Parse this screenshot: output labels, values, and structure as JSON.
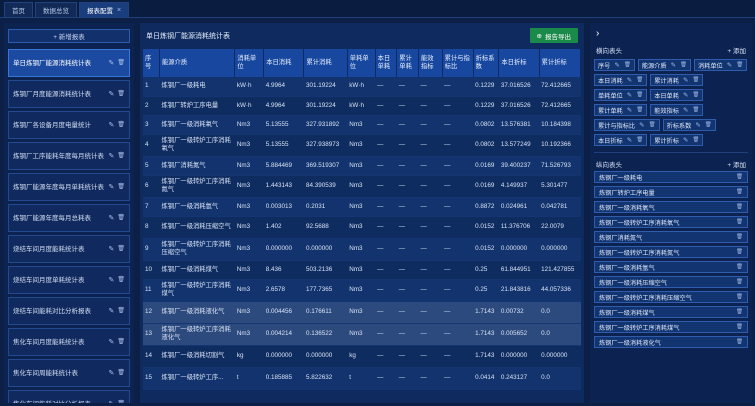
{
  "tabs": [
    {
      "label": "首页",
      "active": false
    },
    {
      "label": "数据总览",
      "active": false
    },
    {
      "label": "报表配置",
      "active": true,
      "closable": true
    }
  ],
  "left": {
    "new_button": "+ 新增报表",
    "items": [
      {
        "label": "单日炼钢厂能源消耗统计表",
        "active": true
      },
      {
        "label": "炼钢厂月度能源消耗统计表"
      },
      {
        "label": "炼钢厂各设备月度电量统计"
      },
      {
        "label": "炼钢厂工序能耗年度每月统计表"
      },
      {
        "label": "炼钢厂能源年度每月单耗统计表"
      },
      {
        "label": "炼钢厂能源年度每月总耗表"
      },
      {
        "label": "烧结车间月度能耗统计表"
      },
      {
        "label": "烧结车间月度单耗统计表"
      },
      {
        "label": "烧结车间能耗对比分析报表"
      },
      {
        "label": "焦化车间月度能耗统计表"
      },
      {
        "label": "焦化车间周能耗统计表"
      },
      {
        "label": "焦化车间能耗对比分析报表"
      }
    ]
  },
  "center": {
    "title": "单日炼钢厂能源消耗统计表",
    "export_label": "报告导出",
    "columns": [
      "序号",
      "能源介质",
      "消耗单位",
      "本日消耗",
      "累计消耗",
      "单耗单位",
      "本日单耗",
      "累计单耗",
      "能效指标",
      "累计与指标比",
      "折标系数",
      "本日折标",
      "累计折标"
    ],
    "rows": [
      [
        "1",
        "炼钢厂一级耗电",
        "kW·h",
        "4.9964",
        "301.19224",
        "kW·h",
        "—",
        "—",
        "—",
        "—",
        "0.1229",
        "37.016526",
        "72.412665"
      ],
      [
        "2",
        "炼钢厂转炉工序电量",
        "kW·h",
        "4.9964",
        "301.19224",
        "kW·h",
        "—",
        "—",
        "—",
        "—",
        "0.1229",
        "37.016526",
        "72.412665"
      ],
      [
        "3",
        "炼钢厂一级消耗氧气",
        "Nm3",
        "5.13555",
        "327.931892",
        "Nm3",
        "—",
        "—",
        "—",
        "—",
        "0.0802",
        "13.576381",
        "10.184398"
      ],
      [
        "4",
        "炼钢厂一级转炉工序消耗氧气",
        "Nm3",
        "5.13555",
        "327.938973",
        "Nm3",
        "—",
        "—",
        "—",
        "—",
        "0.0802",
        "13.577249",
        "10.192366"
      ],
      [
        "5",
        "炼钢厂消耗氮气",
        "Nm3",
        "5.884469",
        "369.519307",
        "Nm3",
        "—",
        "—",
        "—",
        "—",
        "0.0169",
        "39.400237",
        "71.526793"
      ],
      [
        "6",
        "炼钢厂一级转炉工序消耗氮气",
        "Nm3",
        "1.443143",
        "84.390539",
        "Nm3",
        "—",
        "—",
        "—",
        "—",
        "0.0169",
        "4.149937",
        "5.301477"
      ],
      [
        "7",
        "炼钢厂一级消耗氩气",
        "Nm3",
        "0.003013",
        "0.2031",
        "Nm3",
        "—",
        "—",
        "—",
        "—",
        "0.8872",
        "0.024961",
        "0.042781"
      ],
      [
        "8",
        "炼钢厂一级消耗压缩空气",
        "Nm3",
        "1.402",
        "92.5688",
        "Nm3",
        "—",
        "—",
        "—",
        "—",
        "0.0152",
        "11.376706",
        "22.0079"
      ],
      [
        "9",
        "炼钢厂一级转炉工序消耗压缩空气",
        "Nm3",
        "0.000000",
        "0.000000",
        "Nm3",
        "—",
        "—",
        "—",
        "—",
        "0.0152",
        "0.000000",
        "0.000000"
      ],
      [
        "10",
        "炼钢厂一级消耗煤气",
        "Nm3",
        "8.436",
        "503.2136",
        "Nm3",
        "—",
        "—",
        "—",
        "—",
        "0.25",
        "61.844951",
        "121.427855"
      ],
      [
        "11",
        "炼钢厂一级转炉工序消耗煤气",
        "Nm3",
        "2.6578",
        "177.7365",
        "Nm3",
        "—",
        "—",
        "—",
        "—",
        "0.25",
        "21.843816",
        "44.057336"
      ],
      [
        "12",
        "炼钢厂一级消耗液化气",
        "Nm3",
        "0.004456",
        "0.176611",
        "Nm3",
        "—",
        "—",
        "—",
        "—",
        "1.7143",
        "0.00732",
        "0.0"
      ],
      [
        "13",
        "炼钢厂一级转炉工序消耗液化气",
        "Nm3",
        "0.004214",
        "0.136522",
        "Nm3",
        "—",
        "—",
        "—",
        "—",
        "1.7143",
        "0.005652",
        "0.0"
      ],
      [
        "14",
        "炼钢厂一级消耗切割气",
        "kg",
        "0.000000",
        "0.000000",
        "kg",
        "—",
        "—",
        "—",
        "—",
        "1.7143",
        "0.000000",
        "0.000000"
      ],
      [
        "15",
        "炼钢厂一级转炉工序...",
        "t",
        "0.185885",
        "5.822632",
        "t",
        "—",
        "—",
        "—",
        "—",
        "0.0414",
        "0.243127",
        "0.0"
      ]
    ]
  },
  "right": {
    "collapse_icon": "chevron-right-icon",
    "col_header_title": "横向表头",
    "add_label": "+ 添加",
    "col_chips": [
      "序号",
      "能源介质",
      "消耗单位",
      "本日消耗",
      "累计消耗",
      "单耗单位",
      "本日单耗",
      "累计单耗",
      "能效指标",
      "累计与指标比",
      "折标系数",
      "本日折标",
      "累计折标"
    ],
    "row_header_title": "纵向表头",
    "row_items": [
      "炼钢厂一级耗电",
      "炼钢厂转炉工序电量",
      "炼钢厂一级消耗氧气",
      "炼钢厂一级转炉工序消耗氧气",
      "炼钢厂消耗氮气",
      "炼钢厂一级转炉工序消耗氮气",
      "炼钢厂一级消耗氩气",
      "炼钢厂一级消耗压缩空气",
      "炼钢厂一级转炉工序消耗压缩空气",
      "炼钢厂一级消耗煤气",
      "炼钢厂一级转炉工序消耗煤气",
      "炼钢厂一级消耗液化气"
    ]
  }
}
